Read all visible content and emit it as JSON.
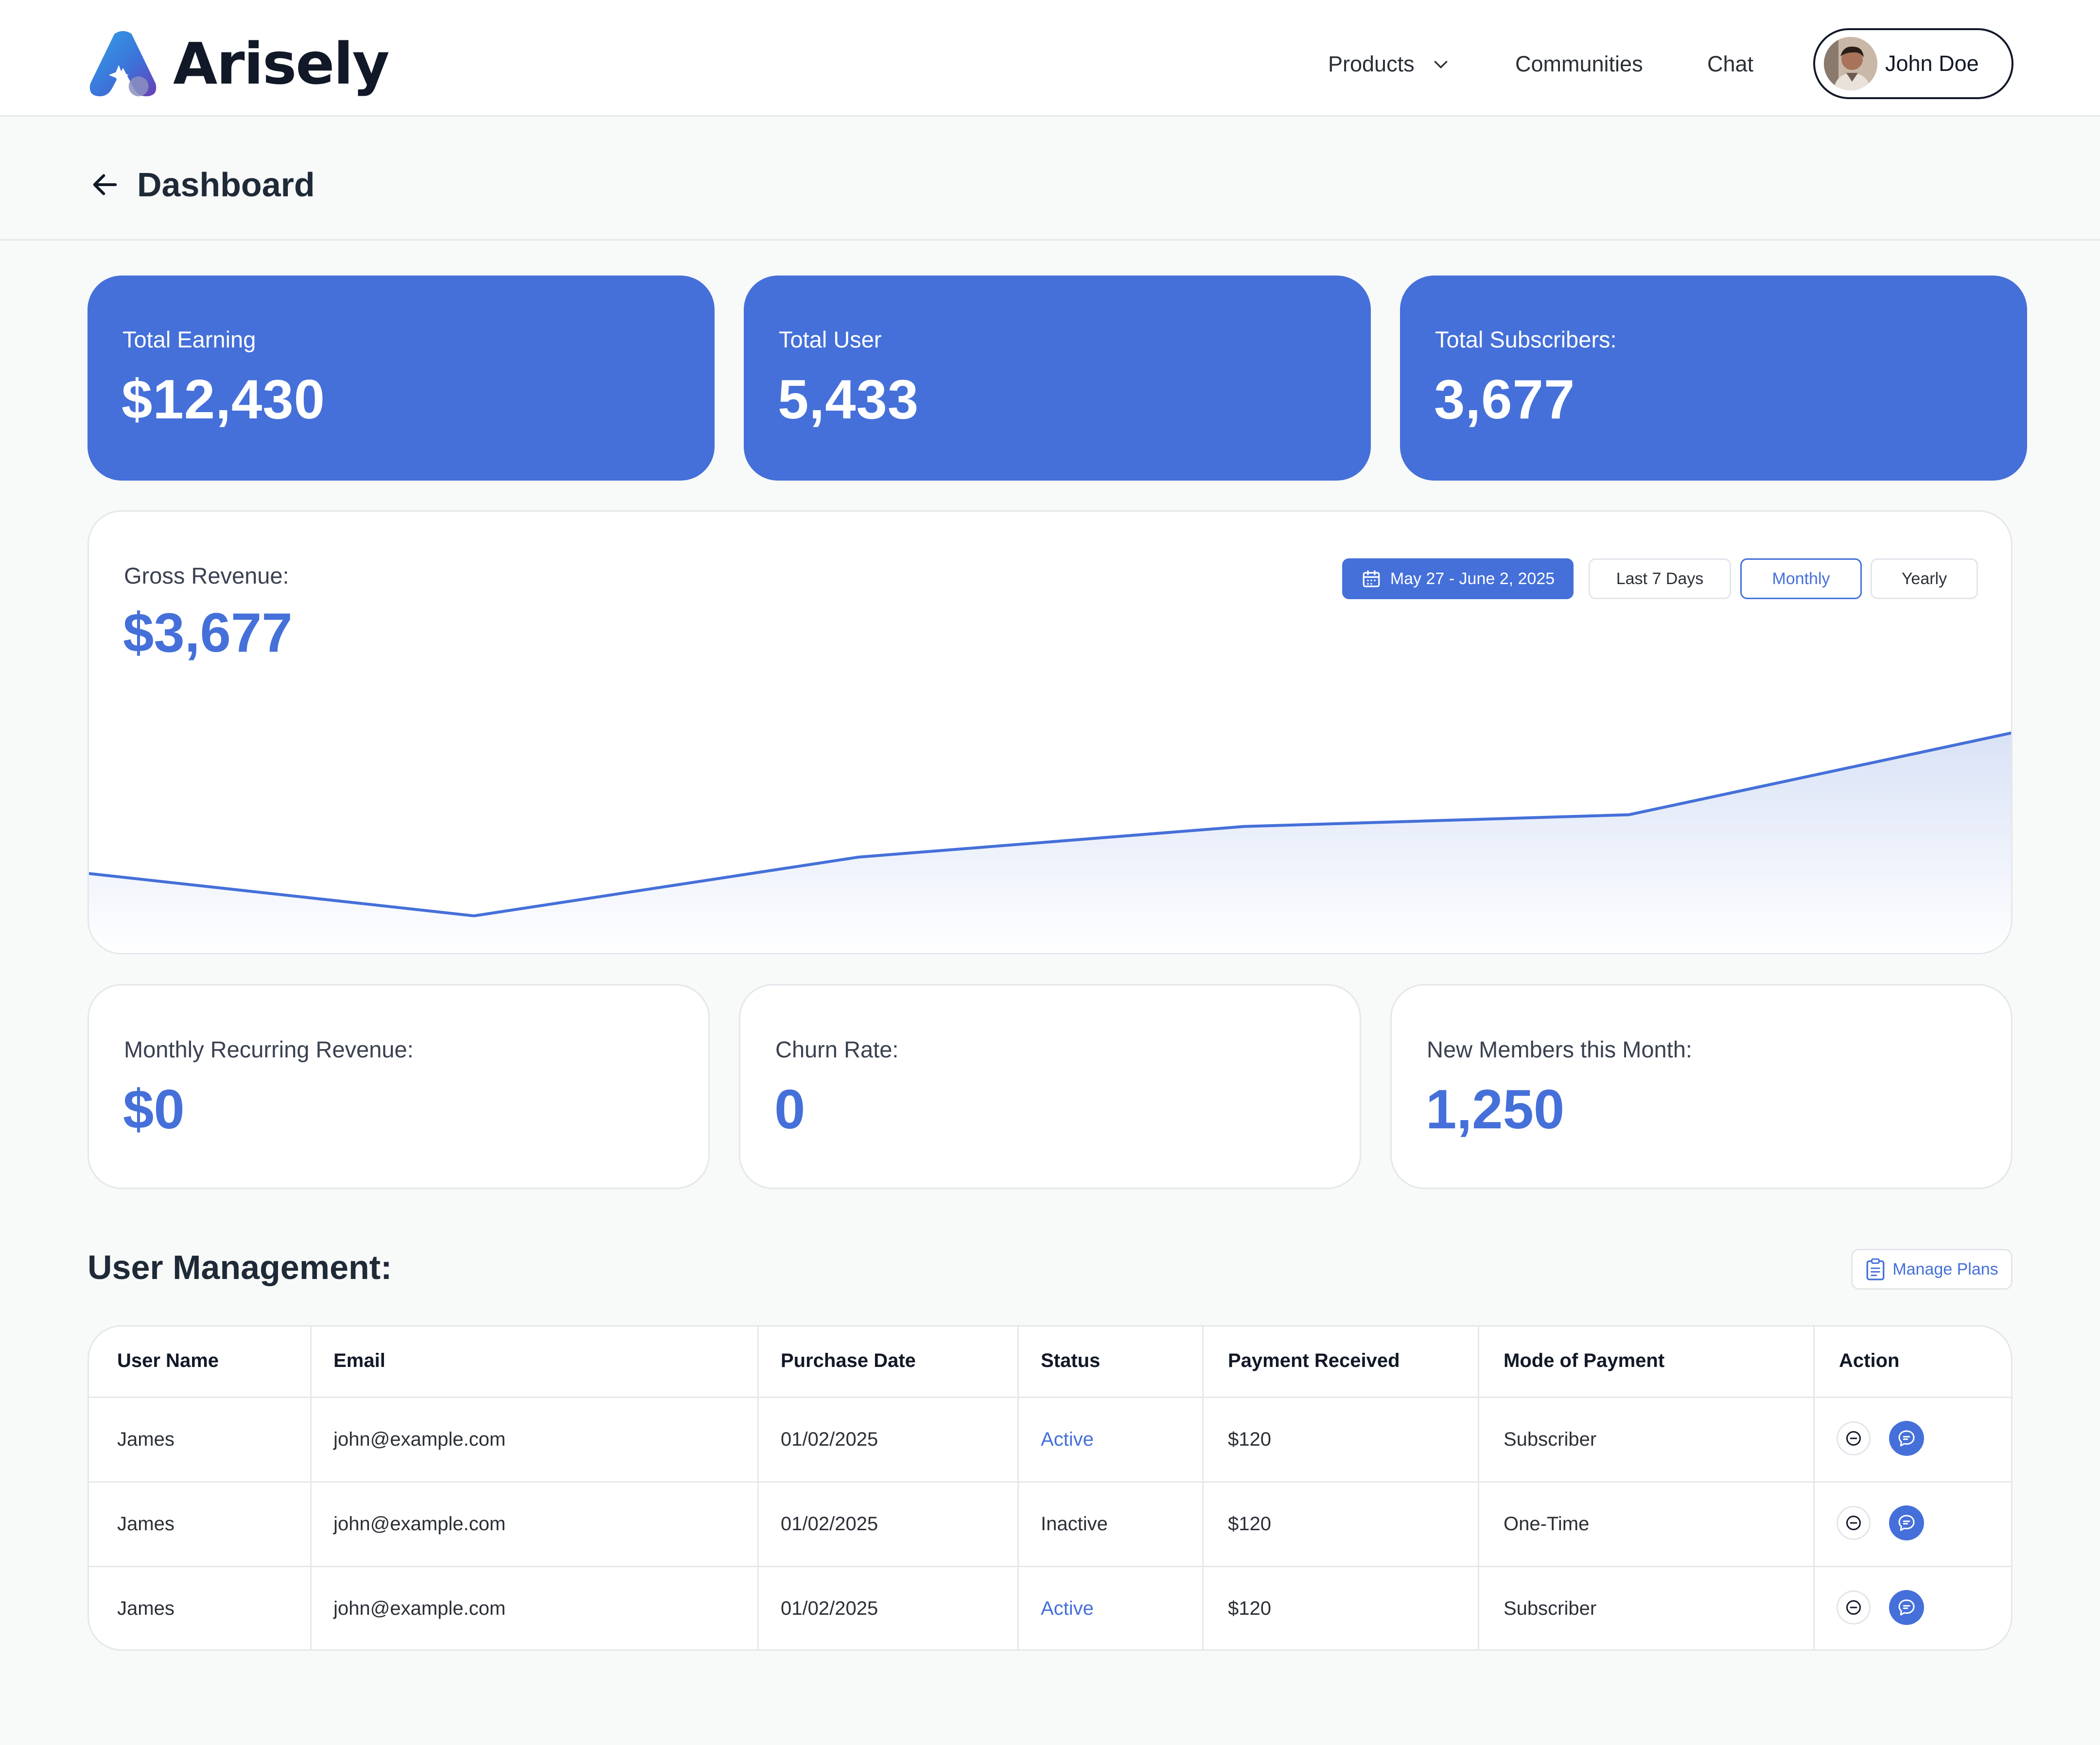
{
  "brand": {
    "name": "Arisely"
  },
  "nav": {
    "products": "Products",
    "communities": "Communities",
    "chat": "Chat",
    "user_name": "John Doe"
  },
  "page": {
    "title": "Dashboard"
  },
  "stats_top": [
    {
      "label": "Total Earning",
      "value": "$12,430"
    },
    {
      "label": "Total User",
      "value": "5,433"
    },
    {
      "label": "Total Subscribers:",
      "value": "3,677"
    }
  ],
  "revenue": {
    "label": "Gross Revenue:",
    "value": "$3,677",
    "ranges": {
      "date": "May 27 - June 2, 2025",
      "last7": "Last 7 Days",
      "monthly": "Monthly",
      "yearly": "Yearly"
    },
    "selected_range": "Monthly"
  },
  "chart_data": {
    "type": "area",
    "title": "Gross Revenue:",
    "xlabel": "",
    "ylabel": "",
    "grid": false,
    "legend": "none",
    "ylim": [
      0,
      100
    ],
    "x": [
      0,
      0.2,
      0.4,
      0.6,
      0.8,
      1.0
    ],
    "series": [
      {
        "values": [
          35,
          17,
          42,
          55,
          60,
          95
        ]
      }
    ],
    "colors": {
      "line": "#4570D9",
      "fill_top": "#D9E2F6",
      "fill_bottom": "#FFFFFF"
    }
  },
  "stats_bottom": [
    {
      "label": "Monthly Recurring Revenue:",
      "value": "$0"
    },
    {
      "label": "Churn Rate:",
      "value": "0"
    },
    {
      "label": "New Members this Month:",
      "value": "1,250"
    }
  ],
  "users": {
    "title": "User Management:",
    "manage_label": "Manage Plans",
    "columns": [
      "User Name",
      "Email",
      "Purchase Date",
      "Status",
      "Payment Received",
      "Mode of Payment",
      "Action"
    ],
    "rows": [
      {
        "name": "James",
        "email": "john@example.com",
        "date": "01/02/2025",
        "status": "Active",
        "payment": "$120",
        "mode": "Subscriber"
      },
      {
        "name": "James",
        "email": "john@example.com",
        "date": "01/02/2025",
        "status": "Inactive",
        "payment": "$120",
        "mode": "One-Time"
      },
      {
        "name": "James",
        "email": "john@example.com",
        "date": "01/02/2025",
        "status": "Active",
        "payment": "$120",
        "mode": "Subscriber"
      }
    ]
  },
  "colors": {
    "accent": "#4570D9",
    "background": "#F8F9F9",
    "border": "#E4E7EB"
  }
}
